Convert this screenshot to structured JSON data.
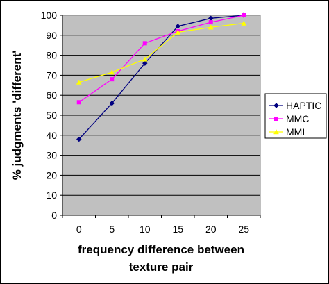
{
  "chart_data": {
    "type": "line",
    "title": "",
    "xlabel_lines": [
      "frequency difference between",
      "texture pair"
    ],
    "ylabel": "% judgments 'different'",
    "x": [
      0,
      5,
      10,
      15,
      20,
      25
    ],
    "ylim": [
      0,
      100
    ],
    "yticks": [
      0,
      10,
      20,
      30,
      40,
      50,
      60,
      70,
      80,
      90,
      100
    ],
    "grid": "horizontal",
    "plot_background": "#c0c0c0",
    "legend_position": "right",
    "series": [
      {
        "name": "HAPTIC",
        "color": "#000080",
        "marker": "diamond",
        "values": [
          38,
          56,
          76,
          94.5,
          98.5,
          100
        ]
      },
      {
        "name": "MMC",
        "color": "#ff00ff",
        "marker": "square",
        "values": [
          56.5,
          68,
          86,
          92,
          96.5,
          100
        ]
      },
      {
        "name": "MMI",
        "color": "#ffff00",
        "marker": "triangle",
        "values": [
          66.5,
          71.5,
          78,
          91.5,
          94,
          96
        ]
      }
    ]
  }
}
